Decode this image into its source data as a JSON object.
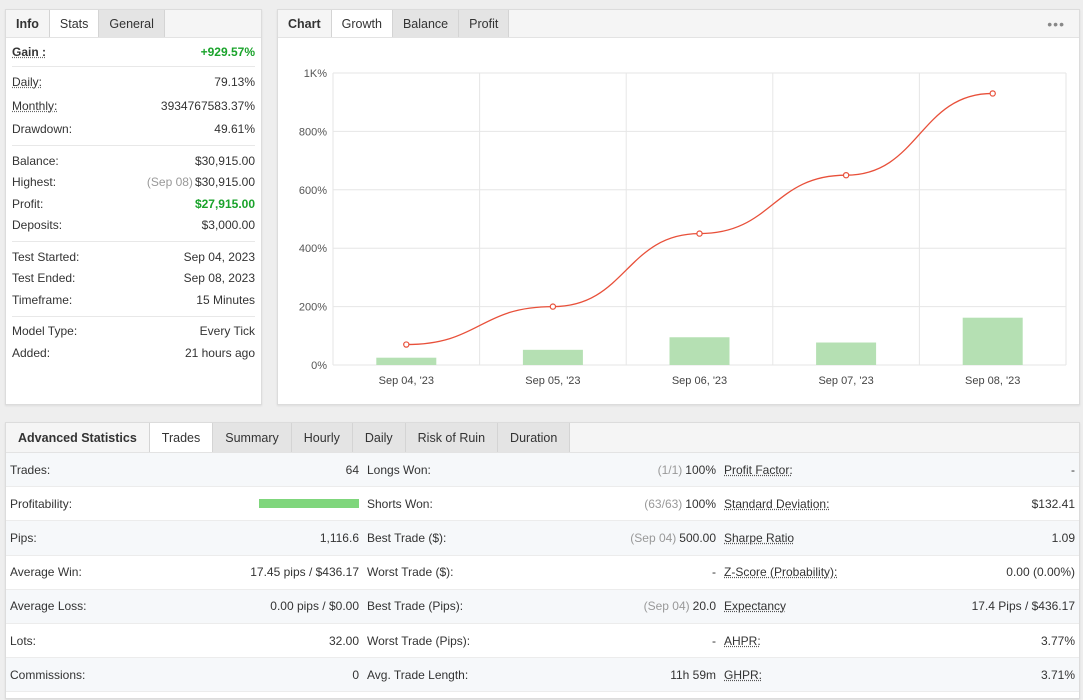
{
  "info": {
    "tabs": [
      "Info",
      "Stats",
      "General"
    ],
    "gain": {
      "label": "Gain :",
      "value": "+929.57%"
    },
    "daily": {
      "label": "Daily:",
      "value": "79.13%"
    },
    "monthly": {
      "label": "Monthly:",
      "value": "3934767583.37%"
    },
    "drawdown": {
      "label": "Drawdown:",
      "value": "49.61%"
    },
    "balance": {
      "label": "Balance:",
      "value": "$30,915.00"
    },
    "highest": {
      "label": "Highest:",
      "date": "(Sep 08)",
      "value": "$30,915.00"
    },
    "profit": {
      "label": "Profit:",
      "value": "$27,915.00"
    },
    "deposits": {
      "label": "Deposits:",
      "value": "$3,000.00"
    },
    "test_started": {
      "label": "Test Started:",
      "value": "Sep 04, 2023"
    },
    "test_ended": {
      "label": "Test Ended:",
      "value": "Sep 08, 2023"
    },
    "timeframe": {
      "label": "Timeframe:",
      "value": "15 Minutes"
    },
    "model_type": {
      "label": "Model Type:",
      "value": "Every Tick"
    },
    "added": {
      "label": "Added:",
      "value": "21 hours ago"
    }
  },
  "chart": {
    "tabs": [
      "Chart",
      "Growth",
      "Balance",
      "Profit"
    ],
    "more_icon": "more-dots-icon"
  },
  "chart_data": {
    "type": "line",
    "categories": [
      "Sep 04, '23",
      "Sep 05, '23",
      "Sep 06, '23",
      "Sep 07, '23",
      "Sep 08, '23"
    ],
    "series": [
      {
        "values": [
          70,
          200,
          450,
          650,
          930
        ],
        "color": "#e8503a"
      },
      {
        "values": [
          25,
          52,
          95,
          77,
          162
        ],
        "color": "#b5e0b3"
      }
    ],
    "yticks": [
      "0%",
      "200%",
      "400%",
      "600%",
      "800%",
      "1K%"
    ],
    "ylim": [
      0,
      1000
    ],
    "grid": true
  },
  "adv": {
    "tabs": [
      "Advanced Statistics",
      "Trades",
      "Summary",
      "Hourly",
      "Daily",
      "Risk of Ruin",
      "Duration"
    ],
    "col1": [
      {
        "k": "Trades:",
        "v": "64"
      },
      {
        "k": "Profitability:",
        "v": ""
      },
      {
        "k": "Pips:",
        "v": "1,116.6"
      },
      {
        "k": "Average Win:",
        "v": "17.45 pips / $436.17"
      },
      {
        "k": "Average Loss:",
        "v": "0.00 pips / $0.00"
      },
      {
        "k": "Lots:",
        "v": "32.00"
      },
      {
        "k": "Commissions:",
        "v": "0"
      }
    ],
    "col2": [
      {
        "k": "Longs Won:",
        "m": "(1/1)",
        "v": "100%"
      },
      {
        "k": "Shorts Won:",
        "m": "(63/63)",
        "v": "100%"
      },
      {
        "k": "Best Trade ($):",
        "m": "(Sep 04)",
        "v": "500.00"
      },
      {
        "k": "Worst Trade ($):",
        "m": "",
        "v": "-"
      },
      {
        "k": "Best Trade (Pips):",
        "m": "(Sep 04)",
        "v": "20.0"
      },
      {
        "k": "Worst Trade (Pips):",
        "m": "",
        "v": "-"
      },
      {
        "k": "Avg. Trade Length:",
        "m": "",
        "v": "11h 59m"
      }
    ],
    "col3": [
      {
        "k": "Profit Factor:",
        "v": "-"
      },
      {
        "k": "Standard Deviation:",
        "v": "$132.41"
      },
      {
        "k": "Sharpe Ratio",
        "v": "1.09"
      },
      {
        "k": "Z-Score (Probability):",
        "v": "0.00 (0.00%)"
      },
      {
        "k": "Expectancy",
        "v": "17.4 Pips / $436.17"
      },
      {
        "k": "AHPR:",
        "v": "3.77%"
      },
      {
        "k": "GHPR:",
        "v": "3.71%"
      }
    ],
    "profitability_fraction": 1.0
  }
}
